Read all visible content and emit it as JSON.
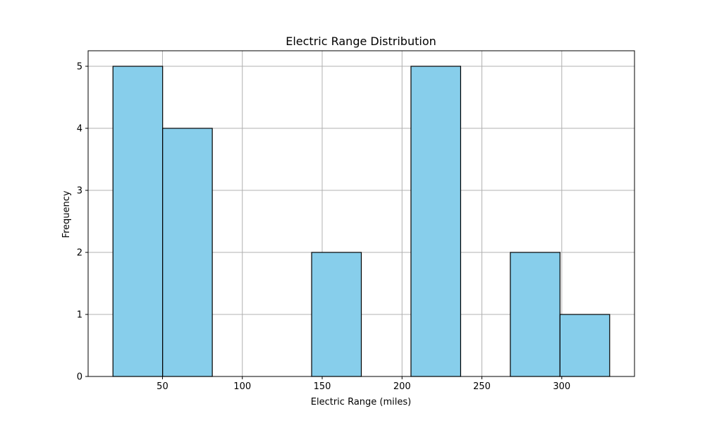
{
  "chart_data": {
    "type": "bar",
    "title": "Electric Range Distribution",
    "xlabel": "Electric Range (miles)",
    "ylabel": "Frequency",
    "bins": [
      {
        "start": 19.0,
        "end": 50.1,
        "count": 5
      },
      {
        "start": 50.1,
        "end": 81.2,
        "count": 4
      },
      {
        "start": 81.2,
        "end": 112.3,
        "count": 0
      },
      {
        "start": 112.3,
        "end": 143.4,
        "count": 0
      },
      {
        "start": 143.4,
        "end": 174.5,
        "count": 2
      },
      {
        "start": 174.5,
        "end": 205.6,
        "count": 0
      },
      {
        "start": 205.6,
        "end": 236.7,
        "count": 5
      },
      {
        "start": 236.7,
        "end": 267.8,
        "count": 0
      },
      {
        "start": 267.8,
        "end": 298.9,
        "count": 2
      },
      {
        "start": 298.9,
        "end": 330.0,
        "count": 1
      }
    ],
    "xlim": [
      3.45,
      345.55
    ],
    "ylim": [
      0,
      5.25
    ],
    "xticks": [
      50,
      100,
      150,
      200,
      250,
      300
    ],
    "yticks": [
      0,
      1,
      2,
      3,
      4,
      5
    ],
    "grid": true,
    "colors": {
      "bar_fill": "#87CEEB",
      "bar_edge": "#000000",
      "grid": "#b0b0b0"
    }
  }
}
